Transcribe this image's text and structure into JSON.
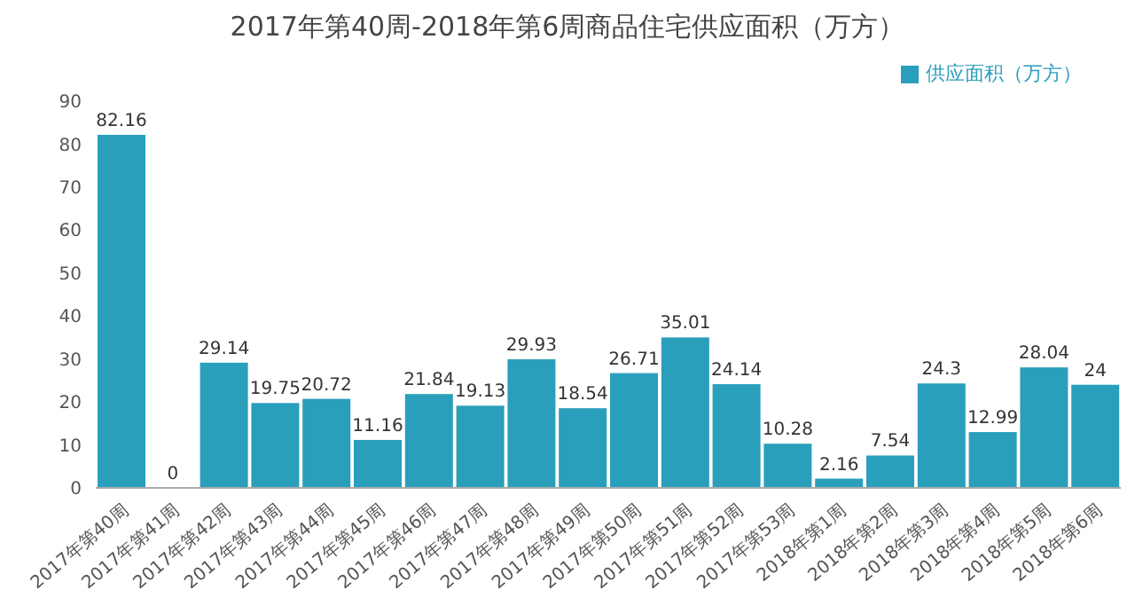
{
  "chart_data": {
    "type": "bar",
    "title": "2017年第40周-2018年第6周商品住宅供应面积（万方）",
    "categories": [
      "2017年第40周",
      "2017年第41周",
      "2017年第42周",
      "2017年第43周",
      "2017年第44周",
      "2017年第45周",
      "2017年第46周",
      "2017年第47周",
      "2017年第48周",
      "2017年第49周",
      "2017年第50周",
      "2017年第51周",
      "2017年第52周",
      "2017年第53周",
      "2018年第1周",
      "2018年第2周",
      "2018年第3周",
      "2018年第4周",
      "2018年第5周",
      "2018年第6周"
    ],
    "series": [
      {
        "name": "供应面积（万方）",
        "color": "#2a9fbc",
        "values": [
          82.16,
          0,
          29.14,
          19.75,
          20.72,
          11.16,
          21.84,
          19.13,
          29.93,
          18.54,
          26.71,
          35.01,
          24.14,
          10.28,
          2.16,
          7.54,
          24.3,
          12.99,
          28.04,
          24
        ]
      }
    ],
    "ylim": [
      0,
      90
    ],
    "yticks": [
      0,
      10,
      20,
      30,
      40,
      50,
      60,
      70,
      80,
      90
    ],
    "data_labels": true,
    "legend": "top right"
  }
}
